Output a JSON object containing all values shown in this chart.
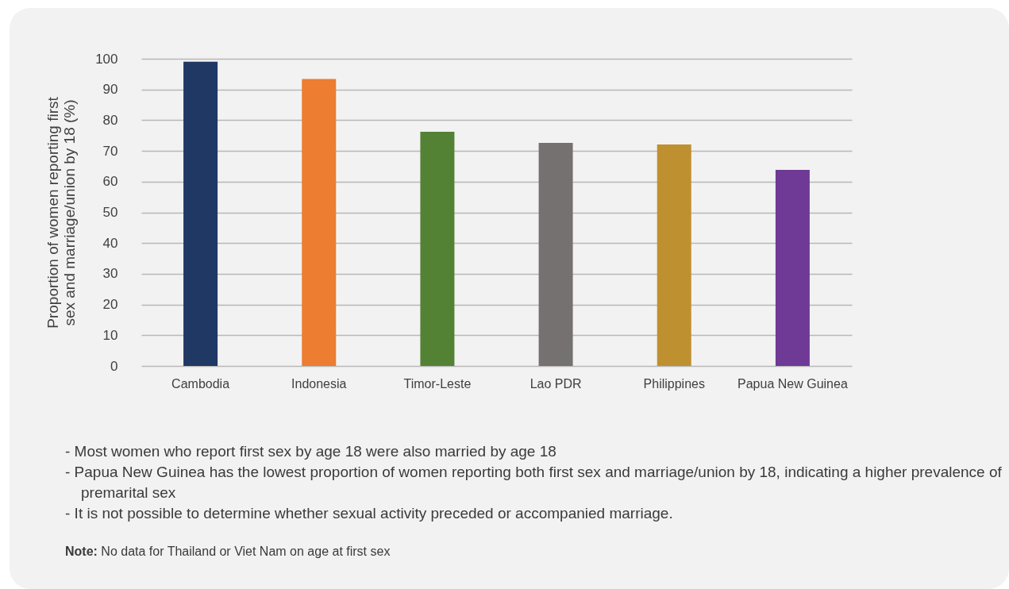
{
  "chart_data": {
    "type": "bar",
    "ylabel": "Proportion of women reporting first sex and marriage/union by 18 (%)",
    "categories": [
      "Cambodia",
      "Indonesia",
      "Timor-Leste",
      "Lao PDR",
      "Philippines",
      "Papua New Guinea"
    ],
    "values": [
      99.0,
      93.4,
      76.2,
      72.6,
      72.1,
      63.8
    ],
    "colors": [
      "#1f3864",
      "#ed7d31",
      "#548235",
      "#767171",
      "#bf9030",
      "#6f3996"
    ],
    "ylim": [
      0,
      100
    ],
    "yticks": [
      0,
      10,
      20,
      30,
      40,
      50,
      60,
      70,
      80,
      90,
      100
    ],
    "grid": "y",
    "legend": false,
    "annotations": [
      "- Most women who report first sex by age 18 were also married by age 18",
      "- Papua New Guinea has the lowest proportion of women reporting both first sex and marriage/union by 18, indicating a higher prevalence of premarital sex",
      "- It is not possible to determine whether sexual activity preceded or accompanied marriage.",
      "Note: No data for Thailand or Viet Nam on age at first sex"
    ]
  }
}
